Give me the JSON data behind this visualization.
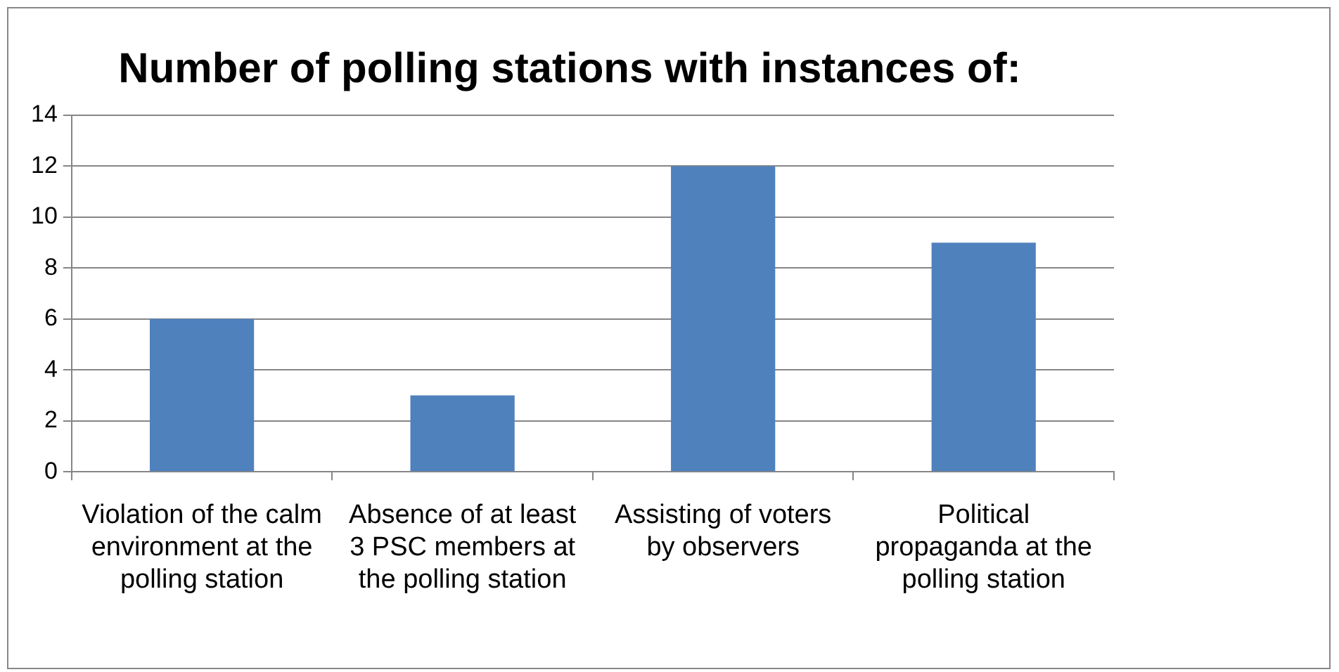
{
  "chart_data": {
    "type": "bar",
    "title": "Number of polling stations with instances of:",
    "categories": [
      "Violation of the calm environment at the polling station",
      "Absence of at least 3 PSC members at the polling station",
      "Assisting of voters by observers",
      "Political propaganda at the polling station"
    ],
    "values": [
      6,
      3,
      12,
      9
    ],
    "color": "#4f81bd",
    "ylim": [
      0,
      14
    ],
    "yticks": [
      0,
      2,
      4,
      6,
      8,
      10,
      12,
      14
    ],
    "grid": "y",
    "legend": false
  }
}
